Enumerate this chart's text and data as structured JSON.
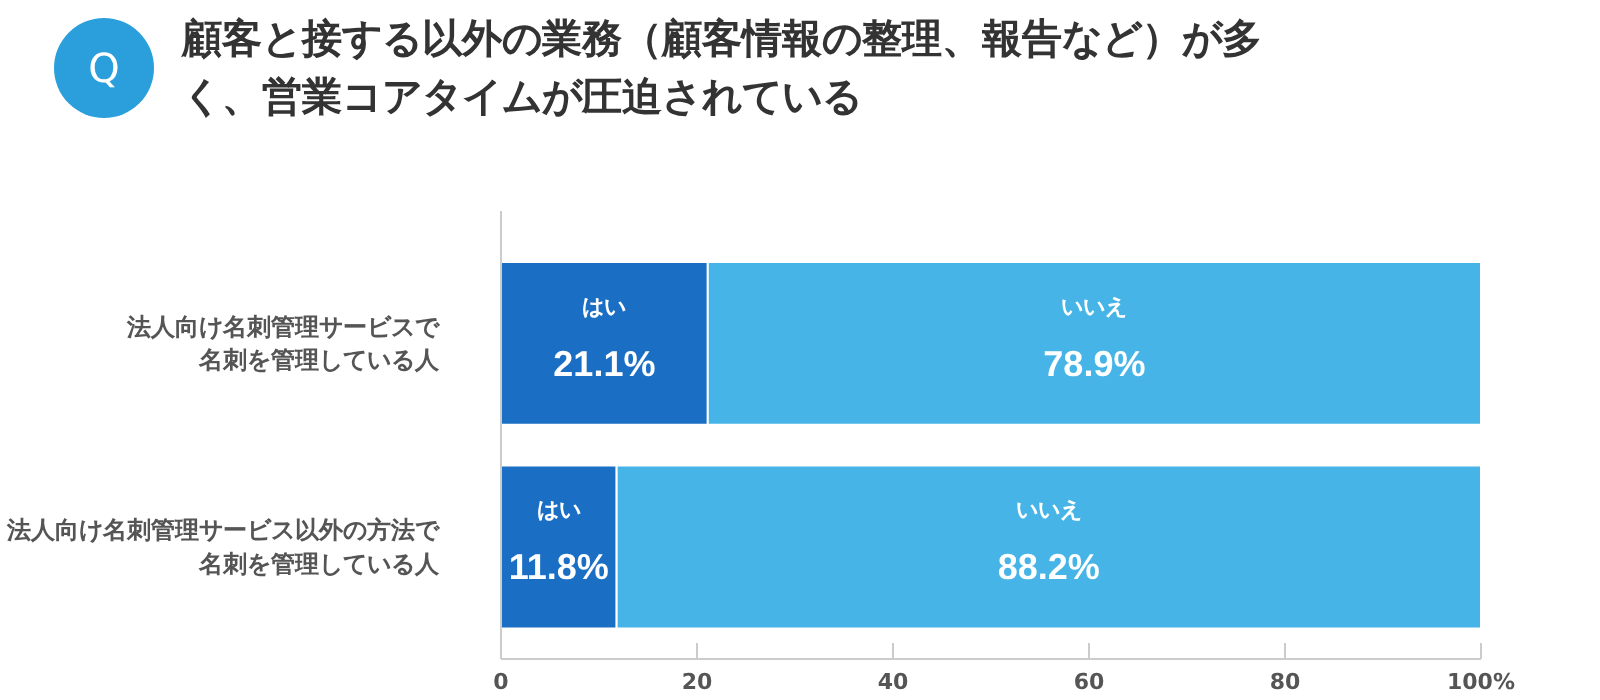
{
  "chart_data": {
    "type": "bar",
    "orientation": "horizontal",
    "stacked": true,
    "title": "顧客と接する以外の業務（顧客情報の整理、報告など）が多く、営業コアタイムが圧迫されている",
    "annotations": [
      "Q"
    ],
    "categories": [
      "法人向け名刺管理サービスで名刺を管理している人",
      "法人向け名刺管理サービス以外の方法で名刺を管理している人"
    ],
    "series": [
      {
        "name": "はい",
        "color": "#1a6fc4",
        "values": [
          21.1,
          11.8
        ],
        "value_labels": [
          "21.1%",
          "11.8%"
        ]
      },
      {
        "name": "いいえ",
        "color": "#46b4e6",
        "values": [
          78.9,
          88.2
        ],
        "value_labels": [
          "78.9%",
          "88.2%"
        ]
      }
    ],
    "xlim": [
      0,
      100
    ],
    "xticks": [
      0,
      20,
      40,
      60,
      80,
      {
        "value": 100,
        "label": "100%"
      }
    ],
    "grid": false,
    "legend": false
  }
}
